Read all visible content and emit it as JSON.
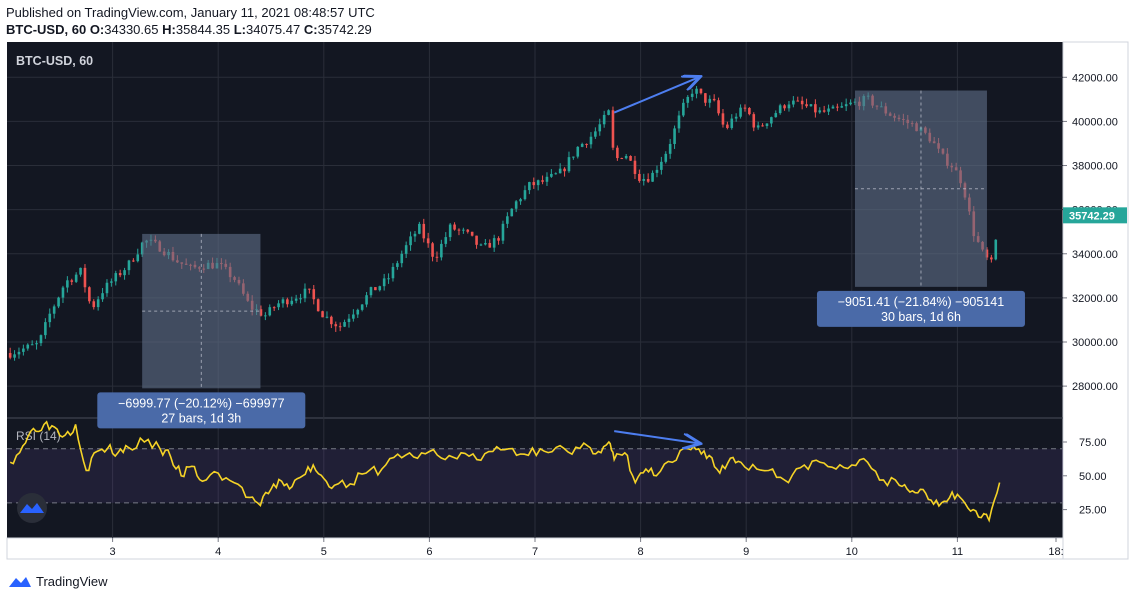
{
  "header": {
    "published": "Published on TradingView.com, January 11, 2021 08:48:57 UTC",
    "symbol": "BTC-USD, 60",
    "o_label": "O:",
    "o_value": "34330.65",
    "h_label": "H:",
    "h_value": "35844.35",
    "l_label": "L:",
    "l_value": "34075.47",
    "c_label": "C:",
    "c_value": "35742.29"
  },
  "footer": {
    "brand": "TradingView"
  },
  "colors": {
    "background": "#131722",
    "up": "#26a69a",
    "down": "#ef5350",
    "rsi": "#f5d327",
    "arrow": "#4d7ef0",
    "box": "#5d6d86",
    "label_bg": "#4a6aa8"
  },
  "chart_data": [
    {
      "type": "candlestick",
      "title": "BTC-USD, 60",
      "x_ticks": [
        "3",
        "4",
        "5",
        "6",
        "7",
        "8",
        "9",
        "10",
        "11",
        "18:"
      ],
      "x_range": [
        2.0,
        12.0
      ],
      "y_ticks": [
        "28000.00",
        "30000.00",
        "32000.00",
        "34000.00",
        "36000.00",
        "38000.00",
        "40000.00",
        "42000.00"
      ],
      "y_range": [
        26600,
        43600
      ],
      "last_price": "35742.29",
      "close_path": {
        "x": [
          2.03,
          2.3,
          2.4,
          2.55,
          2.7,
          2.8,
          2.9,
          3.0,
          3.15,
          3.3,
          3.45,
          3.6,
          3.75,
          3.85,
          4.0,
          4.15,
          4.3,
          4.45,
          4.55,
          4.7,
          4.85,
          5.0,
          5.15,
          5.3,
          5.45,
          5.6,
          5.75,
          5.9,
          6.05,
          6.2,
          6.35,
          6.5,
          6.65,
          6.8,
          6.95,
          7.1,
          7.25,
          7.4,
          7.55,
          7.7,
          7.75,
          7.85,
          8.0,
          8.1,
          8.25,
          8.4,
          8.5,
          8.6,
          8.7,
          8.8,
          8.9,
          9.0,
          9.1,
          9.25,
          9.4,
          9.55,
          9.7,
          9.85,
          10.0,
          10.15,
          10.3,
          10.45,
          10.6,
          10.75,
          10.85,
          10.95,
          11.05,
          11.15,
          11.25,
          11.33,
          11.4
        ],
        "y": [
          29500,
          29900,
          31200,
          32700,
          33200,
          31500,
          32300,
          32800,
          33500,
          34600,
          34300,
          33700,
          33300,
          33500,
          33500,
          32900,
          31600,
          31200,
          31700,
          32000,
          32300,
          31200,
          30700,
          31500,
          32300,
          32800,
          34100,
          35200,
          33800,
          35200,
          34900,
          34200,
          34700,
          36200,
          37100,
          37300,
          37700,
          38800,
          39400,
          40400,
          38200,
          38600,
          37400,
          37500,
          38700,
          40600,
          41500,
          41000,
          40800,
          39600,
          40300,
          40600,
          39600,
          40300,
          40900,
          40700,
          40400,
          40500,
          40800,
          41000,
          40500,
          40100,
          39800,
          39200,
          38400,
          38000,
          37200,
          35000,
          33900,
          33500,
          35742
        ]
      },
      "annotations": [
        {
          "text_line1": "−6999.77 (−20.12%) −699977",
          "text_line2": "27 bars, 1d 3h",
          "x_from": 3.28,
          "x_to": 4.4,
          "y_from": 27900,
          "y_to": 34900
        },
        {
          "text_line1": "−9051.41 (−21.84%) −905141",
          "text_line2": "30 bars, 1d 6h",
          "x_from": 10.03,
          "x_to": 11.28,
          "y_from": 32500,
          "y_to": 41400
        }
      ],
      "trend_arrow": {
        "x_from": 7.75,
        "y_from": 40400,
        "x_to": 8.55,
        "y_to": 42000
      }
    },
    {
      "type": "line",
      "title": "RSI (14)",
      "y_ticks": [
        "25.00",
        "50.00",
        "75.00"
      ],
      "y_range": [
        4,
        92
      ],
      "band": [
        30,
        70
      ],
      "series": [
        {
          "x": [
            2.03,
            2.15,
            2.25,
            2.35,
            2.45,
            2.55,
            2.65,
            2.75,
            2.85,
            2.95,
            3.05,
            3.15,
            3.3,
            3.45,
            3.55,
            3.65,
            3.75,
            3.85,
            4.0,
            4.15,
            4.3,
            4.4,
            4.5,
            4.6,
            4.7,
            4.8,
            4.9,
            5.0,
            5.1,
            5.25,
            5.4,
            5.55,
            5.7,
            5.85,
            6.0,
            6.15,
            6.3,
            6.45,
            6.6,
            6.75,
            6.9,
            7.05,
            7.2,
            7.35,
            7.5,
            7.6,
            7.7,
            7.75,
            7.85,
            7.95,
            8.05,
            8.15,
            8.3,
            8.45,
            8.55,
            8.65,
            8.75,
            8.85,
            8.95,
            9.1,
            9.25,
            9.4,
            9.55,
            9.7,
            9.85,
            10.0,
            10.15,
            10.3,
            10.45,
            10.55,
            10.65,
            10.75,
            10.85,
            10.95,
            11.05,
            11.15,
            11.25,
            11.3,
            11.4
          ],
          "y": [
            60,
            72,
            85,
            88,
            86,
            80,
            88,
            54,
            68,
            70,
            67,
            71,
            75,
            70,
            64,
            50,
            57,
            46,
            52,
            45,
            34,
            28,
            40,
            46,
            42,
            50,
            58,
            48,
            43,
            44,
            52,
            55,
            66,
            64,
            68,
            62,
            67,
            62,
            68,
            70,
            66,
            70,
            71,
            66,
            72,
            68,
            75,
            62,
            67,
            45,
            55,
            50,
            60,
            70,
            70,
            65,
            52,
            63,
            60,
            55,
            55,
            45,
            58,
            60,
            55,
            58,
            60,
            47,
            43,
            38,
            40,
            32,
            30,
            38,
            32,
            25,
            22,
            17,
            45
          ]
        }
      ],
      "trend_arrow": {
        "x_from": 7.75,
        "y_from": 83,
        "x_to": 8.55,
        "y_to": 74
      }
    }
  ]
}
